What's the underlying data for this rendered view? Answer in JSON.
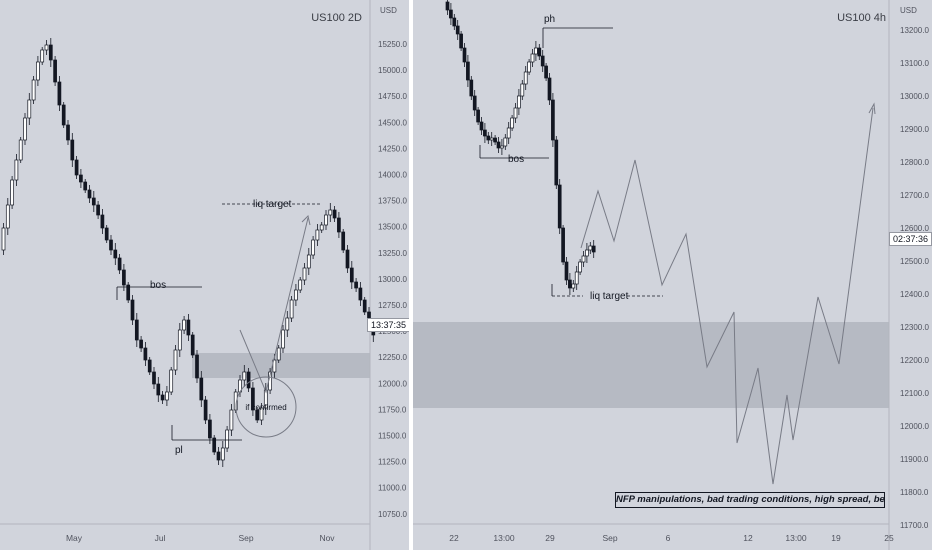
{
  "chart_data": [
    {
      "type": "candlestick",
      "title": "US100 2D",
      "currency": "USD",
      "price_tag": "13:37:35",
      "y_ticks": [
        "15250.0",
        "15000.0",
        "14750.0",
        "14500.0",
        "14250.0",
        "14000.0",
        "13750.0",
        "13500.0",
        "13250.0",
        "13000.0",
        "12750.0",
        "12500.0",
        "12250.0",
        "12000.0",
        "11750.0",
        "11500.0",
        "11250.0",
        "11000.0",
        "10750.0"
      ],
      "x_ticks": [
        "May",
        "Jul",
        "Sep",
        "Nov"
      ],
      "annotations": {
        "bos": "bos",
        "pl": "pl",
        "liq_target": "liq target",
        "if_confirmed": "if confirmed"
      },
      "colors": {
        "background": "#d1d4dc",
        "candle": "#131722",
        "zone": "#b2b5be",
        "projection": "#787b86"
      }
    },
    {
      "type": "candlestick",
      "title": "US100 4h",
      "currency": "USD",
      "price_tag": "02:37:36",
      "y_ticks": [
        "13200.0",
        "13100.0",
        "13000.0",
        "12900.0",
        "12800.0",
        "12700.0",
        "12600.0",
        "12500.0",
        "12400.0",
        "12300.0",
        "12200.0",
        "12100.0",
        "12000.0",
        "11900.0",
        "11800.0",
        "11700.0"
      ],
      "x_ticks": [
        "22",
        "13:00",
        "29",
        "Sep",
        "6",
        "12",
        "13:00",
        "19",
        "25"
      ],
      "annotations": {
        "ph": "ph",
        "bos": "bos",
        "liq_target": "liq target",
        "note": "NFP manipulations, bad trading conditions, high spread, better stay out"
      },
      "colors": {
        "background": "#d1d4dc",
        "candle": "#131722",
        "zone": "#b2b5be",
        "projection": "#787b86"
      }
    }
  ]
}
